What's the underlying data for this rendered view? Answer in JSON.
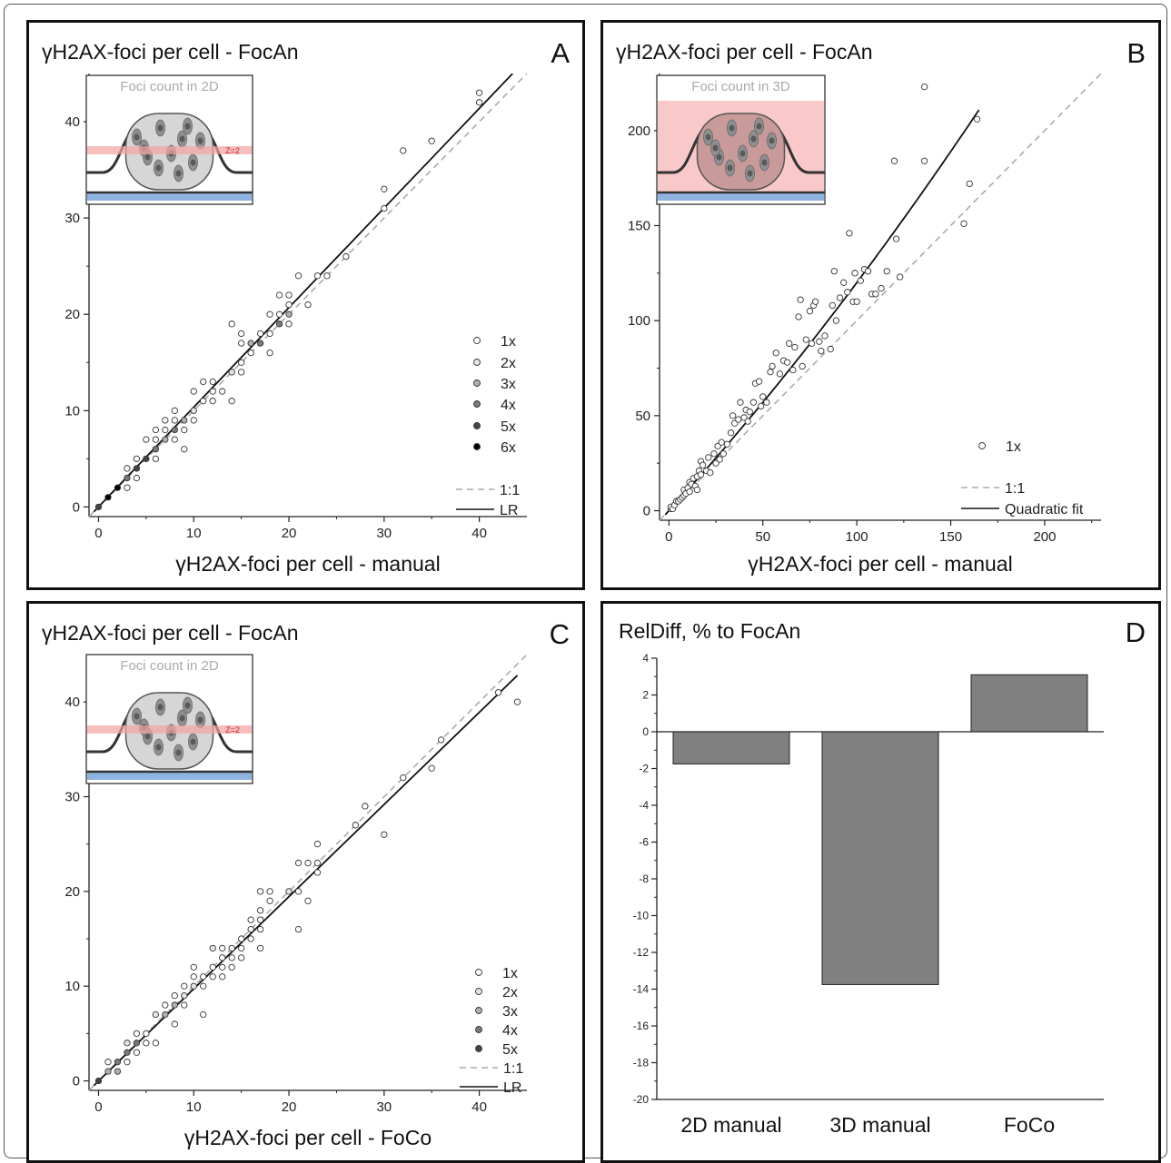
{
  "chart_data": [
    {
      "panel": "A",
      "type": "scatter",
      "panel_letter": "A",
      "ylabel": "γH2AX-foci per cell - FocAn",
      "xlabel": "γH2AX-foci per cell - manual",
      "xlim": [
        -1,
        45
      ],
      "ylim": [
        -1,
        45
      ],
      "xticks": [
        0,
        10,
        20,
        30,
        40
      ],
      "yticks": [
        0,
        10,
        20,
        30,
        40
      ],
      "inset": {
        "title": "Foci count in 2D",
        "zlabel": "Z=2",
        "mode": "2D"
      },
      "legend_markers": [
        {
          "label": "1x",
          "fill": "#ffffff"
        },
        {
          "label": "2x",
          "fill": "#e6e6e6"
        },
        {
          "label": "3x",
          "fill": "#b0b0b0"
        },
        {
          "label": "4x",
          "fill": "#7a7a7a"
        },
        {
          "label": "5x",
          "fill": "#444444"
        },
        {
          "label": "6x",
          "fill": "#000000"
        }
      ],
      "legend_lines": [
        {
          "label": "1:1",
          "style": "dashed",
          "color": "#aaaaaa"
        },
        {
          "label": "LR",
          "style": "solid",
          "color": "#111111"
        }
      ],
      "lines": [
        {
          "kind": "identity",
          "x": [
            -1,
            45
          ],
          "y": [
            -1,
            45
          ]
        },
        {
          "kind": "fit",
          "x": [
            -0.5,
            43.5
          ],
          "y": [
            -0.5,
            45
          ]
        }
      ],
      "points": [
        [
          0,
          0,
          5
        ],
        [
          1,
          1,
          6
        ],
        [
          2,
          2,
          6
        ],
        [
          3,
          3,
          4
        ],
        [
          3,
          2,
          1
        ],
        [
          3,
          4,
          1
        ],
        [
          4,
          4,
          5
        ],
        [
          4,
          3,
          1
        ],
        [
          4,
          5,
          1
        ],
        [
          5,
          5,
          5
        ],
        [
          5,
          7,
          1
        ],
        [
          6,
          6,
          4
        ],
        [
          6,
          5,
          1
        ],
        [
          6,
          7,
          1
        ],
        [
          6,
          8,
          1
        ],
        [
          7,
          7,
          3
        ],
        [
          7,
          8,
          1
        ],
        [
          7,
          9,
          1
        ],
        [
          8,
          8,
          4
        ],
        [
          8,
          7,
          1
        ],
        [
          8,
          9,
          1
        ],
        [
          8,
          10,
          1
        ],
        [
          9,
          9,
          3
        ],
        [
          9,
          8,
          1
        ],
        [
          9,
          6,
          1
        ],
        [
          10,
          10,
          2
        ],
        [
          10,
          12,
          1
        ],
        [
          10,
          9,
          1
        ],
        [
          11,
          11,
          1
        ],
        [
          11,
          13,
          1
        ],
        [
          12,
          12,
          1
        ],
        [
          12,
          11,
          1
        ],
        [
          12,
          13,
          1
        ],
        [
          13,
          12,
          1
        ],
        [
          14,
          14,
          2
        ],
        [
          14,
          11,
          1
        ],
        [
          14,
          19,
          1
        ],
        [
          15,
          15,
          1
        ],
        [
          15,
          17,
          1
        ],
        [
          15,
          18,
          1
        ],
        [
          15,
          14,
          1
        ],
        [
          16,
          16,
          1
        ],
        [
          16,
          17,
          3
        ],
        [
          17,
          17,
          4
        ],
        [
          17,
          18,
          1
        ],
        [
          18,
          18,
          1
        ],
        [
          18,
          20,
          1
        ],
        [
          18,
          16,
          1
        ],
        [
          19,
          19,
          4
        ],
        [
          19,
          20,
          1
        ],
        [
          19,
          22,
          1
        ],
        [
          20,
          20,
          3
        ],
        [
          20,
          19,
          1
        ],
        [
          20,
          22,
          1
        ],
        [
          20,
          21,
          1
        ],
        [
          21,
          24,
          1
        ],
        [
          22,
          21,
          1
        ],
        [
          23,
          24,
          1
        ],
        [
          24,
          24,
          1
        ],
        [
          26,
          26,
          1
        ],
        [
          30,
          33,
          1
        ],
        [
          30,
          31,
          1
        ],
        [
          32,
          37,
          1
        ],
        [
          35,
          38,
          1
        ],
        [
          40,
          43,
          1
        ],
        [
          40,
          42,
          1
        ]
      ]
    },
    {
      "panel": "B",
      "type": "scatter",
      "panel_letter": "B",
      "ylabel": "γH2AX-foci per cell - FocAn",
      "xlabel": "γH2AX-foci per cell - manual",
      "xlim": [
        -5,
        230
      ],
      "ylim": [
        -5,
        230
      ],
      "xticks": [
        0,
        50,
        100,
        150,
        200
      ],
      "yticks": [
        0,
        50,
        100,
        150,
        200
      ],
      "inset": {
        "title": "Foci count in 3D",
        "mode": "3D"
      },
      "legend_markers": [
        {
          "label": "1x",
          "fill": "#ffffff"
        }
      ],
      "legend_lines": [
        {
          "label": "1:1",
          "style": "dashed",
          "color": "#aaaaaa"
        },
        {
          "label": "Quadratic fit",
          "style": "solid",
          "color": "#111111"
        }
      ],
      "lines": [
        {
          "kind": "identity",
          "x": [
            -5,
            230
          ],
          "y": [
            -5,
            230
          ]
        },
        {
          "kind": "fit",
          "x": [
            -2,
            165
          ],
          "y": [
            -2,
            212
          ]
        }
      ],
      "fit_coefficients": [
        0,
        1.08,
        0.0012
      ],
      "points": [
        [
          1,
          1
        ],
        [
          1,
          2
        ],
        [
          2,
          1
        ],
        [
          3,
          3
        ],
        [
          4,
          5
        ],
        [
          5,
          5
        ],
        [
          6,
          6
        ],
        [
          7,
          7
        ],
        [
          8,
          8
        ],
        [
          8,
          11
        ],
        [
          9,
          9
        ],
        [
          10,
          12
        ],
        [
          11,
          10
        ],
        [
          11,
          15
        ],
        [
          12,
          14
        ],
        [
          13,
          17
        ],
        [
          14,
          13
        ],
        [
          15,
          18
        ],
        [
          15,
          11
        ],
        [
          16,
          21
        ],
        [
          17,
          19
        ],
        [
          17,
          26
        ],
        [
          18,
          24
        ],
        [
          20,
          21
        ],
        [
          21,
          28
        ],
        [
          22,
          20
        ],
        [
          24,
          30
        ],
        [
          25,
          25
        ],
        [
          26,
          34
        ],
        [
          27,
          27
        ],
        [
          28,
          36
        ],
        [
          29,
          30
        ],
        [
          31,
          35
        ],
        [
          33,
          41
        ],
        [
          34,
          50
        ],
        [
          35,
          46
        ],
        [
          37,
          48
        ],
        [
          38,
          57
        ],
        [
          40,
          49
        ],
        [
          41,
          53
        ],
        [
          42,
          47
        ],
        [
          43,
          52
        ],
        [
          45,
          57
        ],
        [
          46,
          67
        ],
        [
          48,
          68
        ],
        [
          49,
          55
        ],
        [
          50,
          60
        ],
        [
          52,
          57
        ],
        [
          54,
          73
        ],
        [
          55,
          76
        ],
        [
          57,
          83
        ],
        [
          59,
          72
        ],
        [
          61,
          79
        ],
        [
          63,
          78
        ],
        [
          64,
          88
        ],
        [
          66,
          74
        ],
        [
          67,
          86
        ],
        [
          69,
          102
        ],
        [
          70,
          111
        ],
        [
          71,
          76
        ],
        [
          73,
          90
        ],
        [
          75,
          105
        ],
        [
          76,
          88
        ],
        [
          77,
          108
        ],
        [
          78,
          110
        ],
        [
          80,
          89
        ],
        [
          81,
          84
        ],
        [
          83,
          92
        ],
        [
          86,
          85
        ],
        [
          87,
          108
        ],
        [
          88,
          126
        ],
        [
          89,
          100
        ],
        [
          91,
          112
        ],
        [
          93,
          120
        ],
        [
          95,
          115
        ],
        [
          96,
          146
        ],
        [
          98,
          110
        ],
        [
          99,
          125
        ],
        [
          100,
          110
        ],
        [
          102,
          121
        ],
        [
          104,
          127
        ],
        [
          106,
          126
        ],
        [
          108,
          114
        ],
        [
          110,
          114
        ],
        [
          113,
          117
        ],
        [
          116,
          126
        ],
        [
          120,
          184
        ],
        [
          121,
          143
        ],
        [
          123,
          123
        ],
        [
          136,
          184
        ],
        [
          136,
          223
        ],
        [
          157,
          151
        ],
        [
          160,
          172
        ],
        [
          164,
          206
        ]
      ]
    },
    {
      "panel": "C",
      "type": "scatter",
      "panel_letter": "C",
      "ylabel": "γH2AX-foci per cell - FocAn",
      "xlabel": "γH2AX-foci per cell - FoCo",
      "xlim": [
        -1,
        45
      ],
      "ylim": [
        -1,
        45
      ],
      "xticks": [
        0,
        10,
        20,
        30,
        40
      ],
      "yticks": [
        0,
        10,
        20,
        30,
        40
      ],
      "inset": {
        "title": "Foci count in 2D",
        "zlabel": "Z=2",
        "mode": "2D"
      },
      "legend_markers": [
        {
          "label": "1x",
          "fill": "#ffffff"
        },
        {
          "label": "2x",
          "fill": "#e6e6e6"
        },
        {
          "label": "3x",
          "fill": "#b0b0b0"
        },
        {
          "label": "4x",
          "fill": "#7a7a7a"
        },
        {
          "label": "5x",
          "fill": "#444444"
        }
      ],
      "legend_lines": [
        {
          "label": "1:1",
          "style": "dashed",
          "color": "#aaaaaa"
        },
        {
          "label": "LR",
          "style": "solid",
          "color": "#111111"
        }
      ],
      "lines": [
        {
          "kind": "identity",
          "x": [
            -1,
            45
          ],
          "y": [
            -1,
            45
          ]
        },
        {
          "kind": "fit",
          "x": [
            -0.5,
            44
          ],
          "y": [
            -0.5,
            42.8
          ]
        }
      ],
      "points": [
        [
          0,
          0,
          5
        ],
        [
          1,
          1,
          3
        ],
        [
          1,
          2,
          1
        ],
        [
          2,
          2,
          4
        ],
        [
          2,
          1,
          3
        ],
        [
          3,
          3,
          4
        ],
        [
          3,
          4,
          2
        ],
        [
          3,
          2,
          1
        ],
        [
          4,
          4,
          4
        ],
        [
          4,
          5,
          1
        ],
        [
          4,
          3,
          1
        ],
        [
          5,
          5,
          1
        ],
        [
          5,
          4,
          1
        ],
        [
          6,
          7,
          2
        ],
        [
          6,
          4,
          1
        ],
        [
          7,
          7,
          3
        ],
        [
          7,
          8,
          1
        ],
        [
          8,
          8,
          3
        ],
        [
          8,
          9,
          1
        ],
        [
          8,
          6,
          1
        ],
        [
          9,
          9,
          2
        ],
        [
          9,
          10,
          1
        ],
        [
          9,
          8,
          1
        ],
        [
          10,
          10,
          2
        ],
        [
          10,
          12,
          1
        ],
        [
          10,
          11,
          1
        ],
        [
          11,
          11,
          1
        ],
        [
          11,
          10,
          1
        ],
        [
          11,
          7,
          1
        ],
        [
          12,
          12,
          1
        ],
        [
          12,
          14,
          2
        ],
        [
          12,
          11,
          1
        ],
        [
          13,
          13,
          1
        ],
        [
          13,
          14,
          1
        ],
        [
          13,
          12,
          1
        ],
        [
          13,
          11,
          1
        ],
        [
          14,
          14,
          1
        ],
        [
          14,
          13,
          1
        ],
        [
          14,
          12,
          1
        ],
        [
          15,
          15,
          1
        ],
        [
          15,
          14,
          1
        ],
        [
          15,
          13,
          1
        ],
        [
          16,
          16,
          1
        ],
        [
          16,
          17,
          1
        ],
        [
          16,
          15,
          1
        ],
        [
          17,
          17,
          1
        ],
        [
          17,
          18,
          1
        ],
        [
          17,
          20,
          1
        ],
        [
          17,
          14,
          1
        ],
        [
          17,
          16,
          1
        ],
        [
          18,
          19,
          1
        ],
        [
          18,
          20,
          1
        ],
        [
          20,
          20,
          2
        ],
        [
          21,
          20,
          1
        ],
        [
          21,
          23,
          1
        ],
        [
          21,
          16,
          1
        ],
        [
          22,
          23,
          1
        ],
        [
          22,
          19,
          1
        ],
        [
          23,
          25,
          1
        ],
        [
          23,
          22,
          1
        ],
        [
          23,
          23,
          1
        ],
        [
          27,
          27,
          1
        ],
        [
          28,
          29,
          1
        ],
        [
          30,
          26,
          1
        ],
        [
          32,
          32,
          1
        ],
        [
          35,
          33,
          1
        ],
        [
          36,
          36,
          1
        ],
        [
          42,
          41,
          1
        ],
        [
          44,
          40,
          1
        ]
      ]
    },
    {
      "panel": "D",
      "type": "bar",
      "panel_letter": "D",
      "title": "RelDiff, % to FocAn",
      "categories": [
        "2D manual",
        "3D manual",
        "FoCo"
      ],
      "values": [
        -1.75,
        -13.75,
        3.1
      ],
      "ylim": [
        -20,
        4
      ],
      "yticks": [
        4,
        2,
        0,
        -2,
        -4,
        -6,
        -8,
        -10,
        -12,
        -14,
        -16,
        -18,
        -20
      ],
      "bar_color": "#808080"
    }
  ]
}
